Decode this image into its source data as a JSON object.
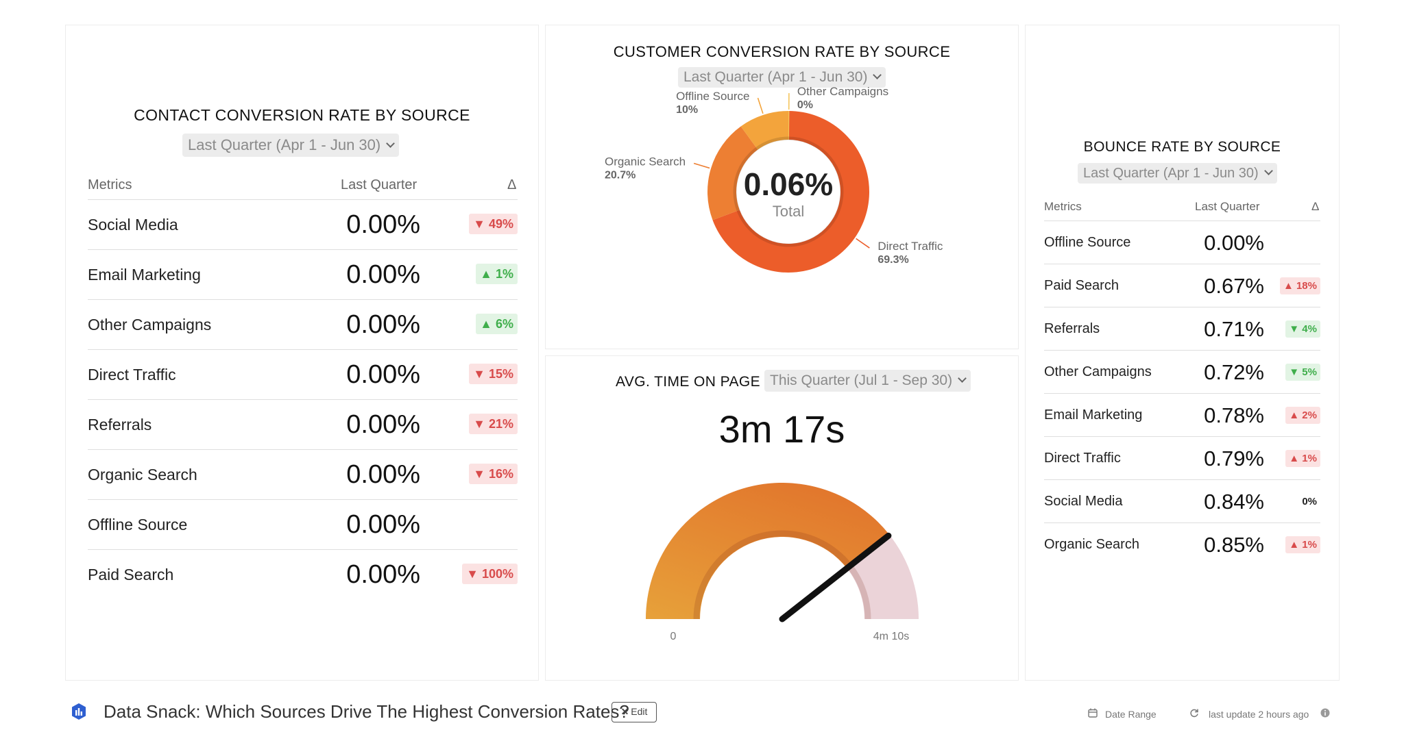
{
  "contact": {
    "title": "CONTACT CONVERSION RATE BY SOURCE",
    "range": "Last Quarter (Apr 1 - Jun 30)",
    "headers": {
      "metrics": "Metrics",
      "period": "Last Quarter",
      "delta": "Δ"
    },
    "rows": [
      {
        "metric": "Social Media",
        "value": "0.00%",
        "delta": "▼ 49%",
        "trend": "down"
      },
      {
        "metric": "Email Marketing",
        "value": "0.00%",
        "delta": "▲ 1%",
        "trend": "up"
      },
      {
        "metric": "Other Campaigns",
        "value": "0.00%",
        "delta": "▲ 6%",
        "trend": "up"
      },
      {
        "metric": "Direct Traffic",
        "value": "0.00%",
        "delta": "▼ 15%",
        "trend": "down"
      },
      {
        "metric": "Referrals",
        "value": "0.00%",
        "delta": "▼ 21%",
        "trend": "down"
      },
      {
        "metric": "Organic Search",
        "value": "0.00%",
        "delta": "▼ 16%",
        "trend": "down"
      },
      {
        "metric": "Offline Source",
        "value": "0.00%",
        "delta": "",
        "trend": "none"
      },
      {
        "metric": "Paid Search",
        "value": "0.00%",
        "delta": "▼ 100%",
        "trend": "down"
      }
    ]
  },
  "customer": {
    "title": "CUSTOMER CONVERSION RATE BY SOURCE",
    "range": "Last Quarter (Apr 1 - Jun 30)",
    "total_value": "0.06%",
    "total_label": "Total",
    "slice_colors": [
      "#ec5d2a",
      "#ed7f33",
      "#f3a43c",
      "#f4c55c"
    ]
  },
  "time": {
    "title": "AVG. TIME ON PAGE",
    "range": "This Quarter (Jul 1 - Sep 30)",
    "value": "3m 17s",
    "min_label": "0",
    "max_label": "4m 10s",
    "fill_fraction": 0.788
  },
  "bounce": {
    "title": "BOUNCE RATE BY SOURCE",
    "range": "Last Quarter (Apr 1 - Jun 30)",
    "headers": {
      "metrics": "Metrics",
      "period": "Last Quarter",
      "delta": "Δ"
    },
    "rows": [
      {
        "metric": "Offline Source",
        "value": "0.00%",
        "delta": "",
        "trend": "none"
      },
      {
        "metric": "Paid Search",
        "value": "0.67%",
        "delta": "▲ 18%",
        "trend": "down"
      },
      {
        "metric": "Referrals",
        "value": "0.71%",
        "delta": "▼ 4%",
        "trend": "up"
      },
      {
        "metric": "Other Campaigns",
        "value": "0.72%",
        "delta": "▼ 5%",
        "trend": "up"
      },
      {
        "metric": "Email Marketing",
        "value": "0.78%",
        "delta": "▲ 2%",
        "trend": "down"
      },
      {
        "metric": "Direct Traffic",
        "value": "0.79%",
        "delta": "▲ 1%",
        "trend": "down"
      },
      {
        "metric": "Social Media",
        "value": "0.84%",
        "delta": "0%",
        "trend": "neutral"
      },
      {
        "metric": "Organic Search",
        "value": "0.85%",
        "delta": "▲ 1%",
        "trend": "down"
      }
    ]
  },
  "footer": {
    "title": "Data Snack: Which Sources Drive The Highest Conversion Rates?",
    "edit_label": "Edit",
    "date_range_label": "Date Range",
    "last_update": "last update 2 hours ago"
  },
  "chart_data": [
    {
      "type": "pie",
      "title": "CUSTOMER CONVERSION RATE BY SOURCE",
      "categories": [
        "Direct Traffic",
        "Organic Search",
        "Offline Source",
        "Other Campaigns"
      ],
      "values": [
        69.3,
        20.7,
        10,
        0
      ],
      "labels": [
        "69.3%",
        "20.7%",
        "10%",
        "0%"
      ],
      "center_value": "0.06%",
      "center_label": "Total"
    }
  ]
}
